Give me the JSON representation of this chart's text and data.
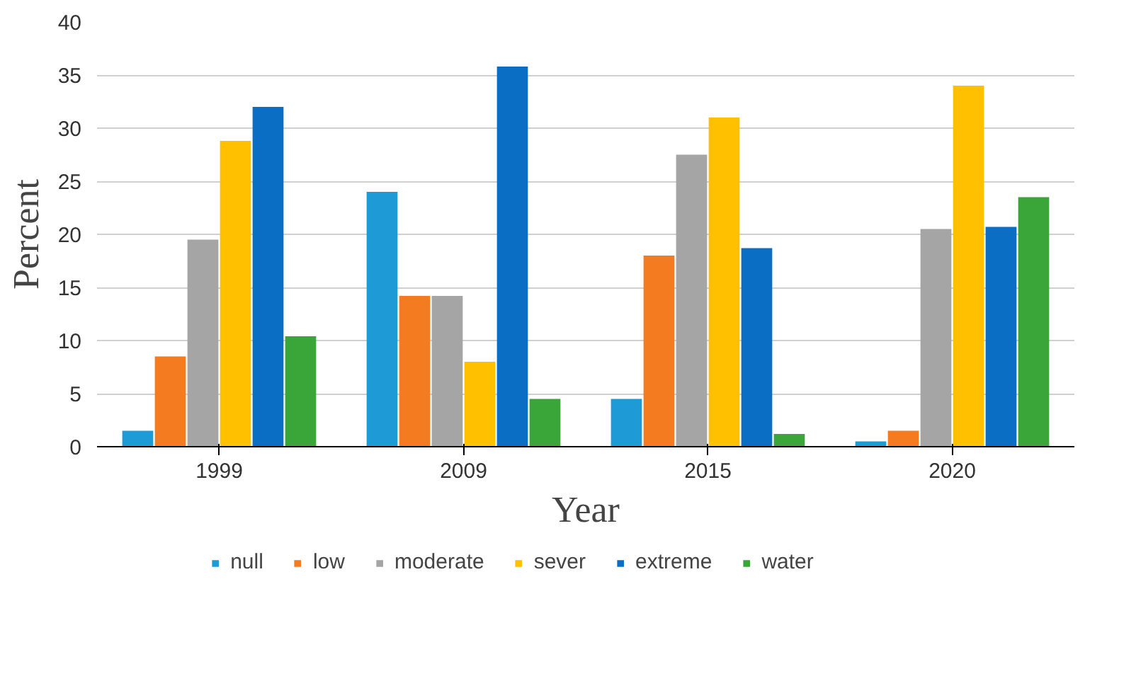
{
  "chart_data": {
    "type": "bar",
    "xlabel": "Year",
    "ylabel": "Percent",
    "categories": [
      "1999",
      "2009",
      "2015",
      "2020"
    ],
    "series": [
      {
        "name": "null",
        "color": "#1e9bd7",
        "values": [
          1.5,
          24,
          4.5,
          0.5
        ]
      },
      {
        "name": "low",
        "color": "#f47b20",
        "values": [
          8.5,
          14.2,
          18,
          1.5
        ]
      },
      {
        "name": "moderate",
        "color": "#a5a5a5",
        "values": [
          19.5,
          14.2,
          27.5,
          20.5
        ]
      },
      {
        "name": "sever",
        "color": "#ffc000",
        "values": [
          28.8,
          8,
          31,
          34
        ]
      },
      {
        "name": "extreme",
        "color": "#0a6fc4",
        "values": [
          32,
          35.8,
          18.7,
          20.7
        ]
      },
      {
        "name": "water",
        "color": "#3aa63a",
        "values": [
          10.4,
          4.5,
          1.2,
          23.5
        ]
      }
    ],
    "ylim": [
      0,
      40
    ],
    "yticks": [
      0,
      5,
      10,
      15,
      20,
      25,
      30,
      35,
      40
    ],
    "grid": "y",
    "legend": "bottom"
  }
}
